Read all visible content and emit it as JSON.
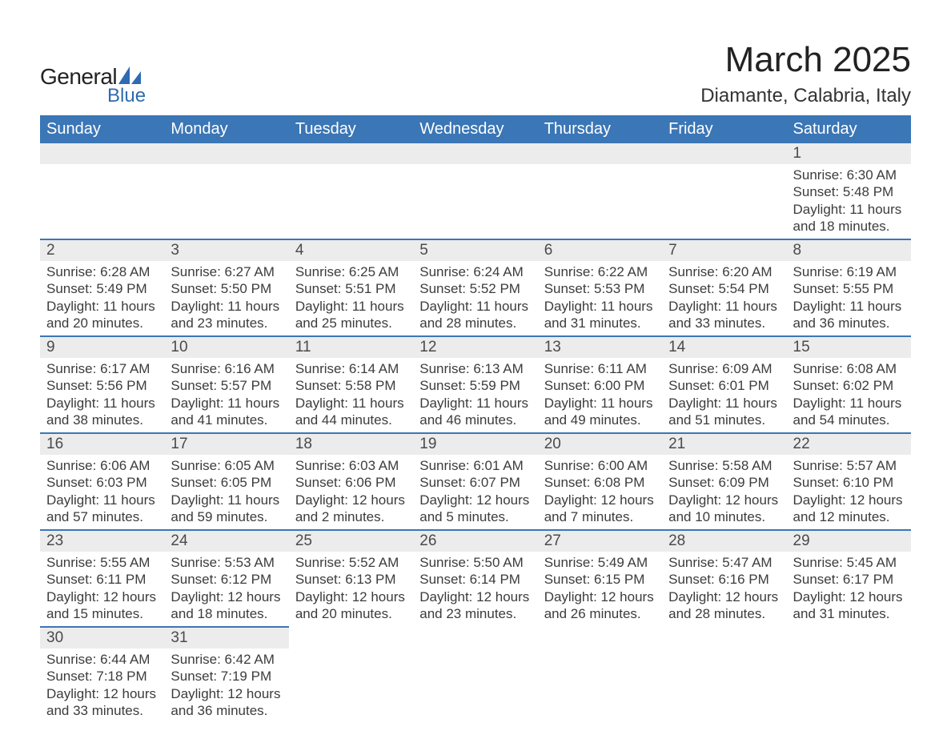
{
  "logo": {
    "text_general": "General",
    "text_blue": "Blue",
    "mark_color": "#2e6bb0"
  },
  "title": "March 2025",
  "location": "Diamante, Calabria, Italy",
  "colors": {
    "header_bg": "#3b76b6",
    "header_text": "#ffffff",
    "daynum_bg": "#ececec",
    "daynum_text": "#4a4a4a",
    "body_text": "#3c3c3c",
    "row_border": "#3b76b6",
    "page_bg": "#ffffff"
  },
  "typography": {
    "title_fontsize": 44,
    "location_fontsize": 24,
    "dow_fontsize": 20,
    "daynum_fontsize": 19,
    "data_fontsize": 17,
    "font_family": "Arial"
  },
  "days_of_week": [
    "Sunday",
    "Monday",
    "Tuesday",
    "Wednesday",
    "Thursday",
    "Friday",
    "Saturday"
  ],
  "weeks": [
    [
      {
        "n": "",
        "sunrise": "",
        "sunset": "",
        "daylight": ""
      },
      {
        "n": "",
        "sunrise": "",
        "sunset": "",
        "daylight": ""
      },
      {
        "n": "",
        "sunrise": "",
        "sunset": "",
        "daylight": ""
      },
      {
        "n": "",
        "sunrise": "",
        "sunset": "",
        "daylight": ""
      },
      {
        "n": "",
        "sunrise": "",
        "sunset": "",
        "daylight": ""
      },
      {
        "n": "",
        "sunrise": "",
        "sunset": "",
        "daylight": ""
      },
      {
        "n": "1",
        "sunrise": "Sunrise: 6:30 AM",
        "sunset": "Sunset: 5:48 PM",
        "daylight": "Daylight: 11 hours and 18 minutes."
      }
    ],
    [
      {
        "n": "2",
        "sunrise": "Sunrise: 6:28 AM",
        "sunset": "Sunset: 5:49 PM",
        "daylight": "Daylight: 11 hours and 20 minutes."
      },
      {
        "n": "3",
        "sunrise": "Sunrise: 6:27 AM",
        "sunset": "Sunset: 5:50 PM",
        "daylight": "Daylight: 11 hours and 23 minutes."
      },
      {
        "n": "4",
        "sunrise": "Sunrise: 6:25 AM",
        "sunset": "Sunset: 5:51 PM",
        "daylight": "Daylight: 11 hours and 25 minutes."
      },
      {
        "n": "5",
        "sunrise": "Sunrise: 6:24 AM",
        "sunset": "Sunset: 5:52 PM",
        "daylight": "Daylight: 11 hours and 28 minutes."
      },
      {
        "n": "6",
        "sunrise": "Sunrise: 6:22 AM",
        "sunset": "Sunset: 5:53 PM",
        "daylight": "Daylight: 11 hours and 31 minutes."
      },
      {
        "n": "7",
        "sunrise": "Sunrise: 6:20 AM",
        "sunset": "Sunset: 5:54 PM",
        "daylight": "Daylight: 11 hours and 33 minutes."
      },
      {
        "n": "8",
        "sunrise": "Sunrise: 6:19 AM",
        "sunset": "Sunset: 5:55 PM",
        "daylight": "Daylight: 11 hours and 36 minutes."
      }
    ],
    [
      {
        "n": "9",
        "sunrise": "Sunrise: 6:17 AM",
        "sunset": "Sunset: 5:56 PM",
        "daylight": "Daylight: 11 hours and 38 minutes."
      },
      {
        "n": "10",
        "sunrise": "Sunrise: 6:16 AM",
        "sunset": "Sunset: 5:57 PM",
        "daylight": "Daylight: 11 hours and 41 minutes."
      },
      {
        "n": "11",
        "sunrise": "Sunrise: 6:14 AM",
        "sunset": "Sunset: 5:58 PM",
        "daylight": "Daylight: 11 hours and 44 minutes."
      },
      {
        "n": "12",
        "sunrise": "Sunrise: 6:13 AM",
        "sunset": "Sunset: 5:59 PM",
        "daylight": "Daylight: 11 hours and 46 minutes."
      },
      {
        "n": "13",
        "sunrise": "Sunrise: 6:11 AM",
        "sunset": "Sunset: 6:00 PM",
        "daylight": "Daylight: 11 hours and 49 minutes."
      },
      {
        "n": "14",
        "sunrise": "Sunrise: 6:09 AM",
        "sunset": "Sunset: 6:01 PM",
        "daylight": "Daylight: 11 hours and 51 minutes."
      },
      {
        "n": "15",
        "sunrise": "Sunrise: 6:08 AM",
        "sunset": "Sunset: 6:02 PM",
        "daylight": "Daylight: 11 hours and 54 minutes."
      }
    ],
    [
      {
        "n": "16",
        "sunrise": "Sunrise: 6:06 AM",
        "sunset": "Sunset: 6:03 PM",
        "daylight": "Daylight: 11 hours and 57 minutes."
      },
      {
        "n": "17",
        "sunrise": "Sunrise: 6:05 AM",
        "sunset": "Sunset: 6:05 PM",
        "daylight": "Daylight: 11 hours and 59 minutes."
      },
      {
        "n": "18",
        "sunrise": "Sunrise: 6:03 AM",
        "sunset": "Sunset: 6:06 PM",
        "daylight": "Daylight: 12 hours and 2 minutes."
      },
      {
        "n": "19",
        "sunrise": "Sunrise: 6:01 AM",
        "sunset": "Sunset: 6:07 PM",
        "daylight": "Daylight: 12 hours and 5 minutes."
      },
      {
        "n": "20",
        "sunrise": "Sunrise: 6:00 AM",
        "sunset": "Sunset: 6:08 PM",
        "daylight": "Daylight: 12 hours and 7 minutes."
      },
      {
        "n": "21",
        "sunrise": "Sunrise: 5:58 AM",
        "sunset": "Sunset: 6:09 PM",
        "daylight": "Daylight: 12 hours and 10 minutes."
      },
      {
        "n": "22",
        "sunrise": "Sunrise: 5:57 AM",
        "sunset": "Sunset: 6:10 PM",
        "daylight": "Daylight: 12 hours and 12 minutes."
      }
    ],
    [
      {
        "n": "23",
        "sunrise": "Sunrise: 5:55 AM",
        "sunset": "Sunset: 6:11 PM",
        "daylight": "Daylight: 12 hours and 15 minutes."
      },
      {
        "n": "24",
        "sunrise": "Sunrise: 5:53 AM",
        "sunset": "Sunset: 6:12 PM",
        "daylight": "Daylight: 12 hours and 18 minutes."
      },
      {
        "n": "25",
        "sunrise": "Sunrise: 5:52 AM",
        "sunset": "Sunset: 6:13 PM",
        "daylight": "Daylight: 12 hours and 20 minutes."
      },
      {
        "n": "26",
        "sunrise": "Sunrise: 5:50 AM",
        "sunset": "Sunset: 6:14 PM",
        "daylight": "Daylight: 12 hours and 23 minutes."
      },
      {
        "n": "27",
        "sunrise": "Sunrise: 5:49 AM",
        "sunset": "Sunset: 6:15 PM",
        "daylight": "Daylight: 12 hours and 26 minutes."
      },
      {
        "n": "28",
        "sunrise": "Sunrise: 5:47 AM",
        "sunset": "Sunset: 6:16 PM",
        "daylight": "Daylight: 12 hours and 28 minutes."
      },
      {
        "n": "29",
        "sunrise": "Sunrise: 5:45 AM",
        "sunset": "Sunset: 6:17 PM",
        "daylight": "Daylight: 12 hours and 31 minutes."
      }
    ],
    [
      {
        "n": "30",
        "sunrise": "Sunrise: 6:44 AM",
        "sunset": "Sunset: 7:18 PM",
        "daylight": "Daylight: 12 hours and 33 minutes."
      },
      {
        "n": "31",
        "sunrise": "Sunrise: 6:42 AM",
        "sunset": "Sunset: 7:19 PM",
        "daylight": "Daylight: 12 hours and 36 minutes."
      },
      {
        "n": "",
        "sunrise": "",
        "sunset": "",
        "daylight": ""
      },
      {
        "n": "",
        "sunrise": "",
        "sunset": "",
        "daylight": ""
      },
      {
        "n": "",
        "sunrise": "",
        "sunset": "",
        "daylight": ""
      },
      {
        "n": "",
        "sunrise": "",
        "sunset": "",
        "daylight": ""
      },
      {
        "n": "",
        "sunrise": "",
        "sunset": "",
        "daylight": ""
      }
    ]
  ]
}
